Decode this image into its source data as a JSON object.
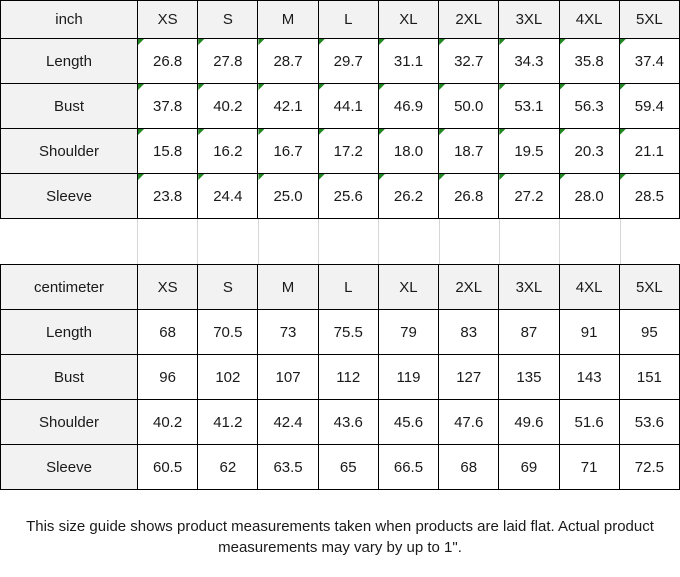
{
  "tables": [
    {
      "unit_label": "inch",
      "sizes": [
        "XS",
        "S",
        "M",
        "L",
        "XL",
        "2XL",
        "3XL",
        "4XL",
        "5XL"
      ],
      "rows": [
        {
          "label": "Length",
          "values": [
            "26.8",
            "27.8",
            "28.7",
            "29.7",
            "31.1",
            "32.7",
            "34.3",
            "35.8",
            "37.4"
          ]
        },
        {
          "label": "Bust",
          "values": [
            "37.8",
            "40.2",
            "42.1",
            "44.1",
            "46.9",
            "50.0",
            "53.1",
            "56.3",
            "59.4"
          ]
        },
        {
          "label": "Shoulder",
          "values": [
            "15.8",
            "16.2",
            "16.7",
            "17.2",
            "18.0",
            "18.7",
            "19.5",
            "20.3",
            "21.1"
          ]
        },
        {
          "label": "Sleeve",
          "values": [
            "23.8",
            "24.4",
            "25.0",
            "25.6",
            "26.2",
            "26.8",
            "27.2",
            "28.0",
            "28.5"
          ]
        }
      ],
      "cell_corner_marker": true
    },
    {
      "unit_label": "centimeter",
      "sizes": [
        "XS",
        "S",
        "M",
        "L",
        "XL",
        "2XL",
        "3XL",
        "4XL",
        "5XL"
      ],
      "rows": [
        {
          "label": "Length",
          "values": [
            "68",
            "70.5",
            "73",
            "75.5",
            "79",
            "83",
            "87",
            "91",
            "95"
          ]
        },
        {
          "label": "Bust",
          "values": [
            "96",
            "102",
            "107",
            "112",
            "119",
            "127",
            "135",
            "143",
            "151"
          ]
        },
        {
          "label": "Shoulder",
          "values": [
            "40.2",
            "41.2",
            "42.4",
            "43.6",
            "45.6",
            "47.6",
            "49.6",
            "51.6",
            "53.6"
          ]
        },
        {
          "label": "Sleeve",
          "values": [
            "60.5",
            "62",
            "63.5",
            "65",
            "66.5",
            "68",
            "69",
            "71",
            "72.5"
          ]
        }
      ],
      "cell_corner_marker": false
    }
  ],
  "footer": {
    "note": "This size guide shows product measurements taken when products are laid flat. Actual product measurements may vary by up to 1\"."
  },
  "colors": {
    "header_bg": "#f2f2f2",
    "cell_bg": "#ffffff",
    "grid_border": "#000000",
    "gap_grid_line": "#d6d6d6",
    "marker_green": "#218721",
    "text": "#1a1a1a"
  }
}
